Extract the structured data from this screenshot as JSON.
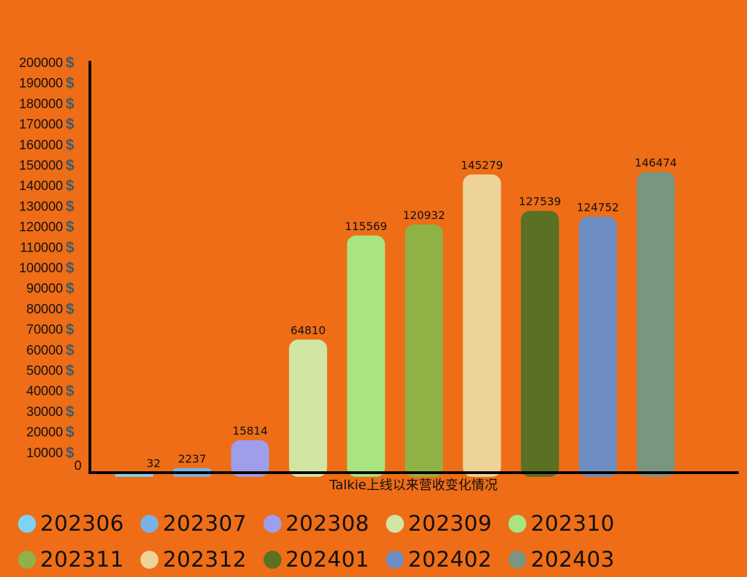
{
  "chart_data": {
    "type": "bar",
    "title": "",
    "xlabel": "Talkie上线以来营收变化情况",
    "ylabel": "",
    "ylim": [
      0,
      200000
    ],
    "y_ticks": [
      0,
      10000,
      20000,
      30000,
      40000,
      50000,
      60000,
      70000,
      80000,
      90000,
      100000,
      110000,
      120000,
      130000,
      140000,
      150000,
      160000,
      170000,
      180000,
      190000,
      200000
    ],
    "y_tick_suffix": "$",
    "categories": [
      "202306",
      "202307",
      "202308",
      "202309",
      "202310",
      "202311",
      "202312",
      "202401",
      "202402",
      "202403"
    ],
    "values": [
      32,
      2237,
      15814,
      64810,
      115569,
      120932,
      145279,
      127539,
      124752,
      146474
    ],
    "colors": [
      "#7DD3F5",
      "#79B1E6",
      "#9E9EEB",
      "#D0E6A2",
      "#A8E47F",
      "#8FB247",
      "#EDD39A",
      "#5A7022",
      "#6E8DC2",
      "#7B9680"
    ],
    "grid": false,
    "legend": "bottom"
  }
}
